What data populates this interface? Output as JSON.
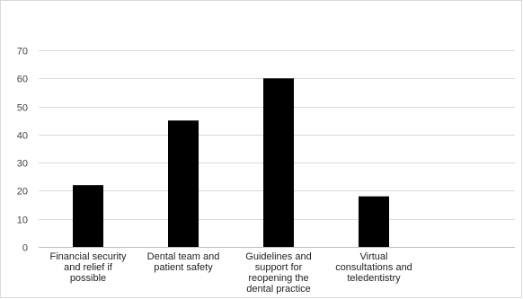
{
  "chart_data": {
    "type": "bar",
    "title": "",
    "xlabel": "",
    "ylabel": "",
    "categories": [
      [
        "Financial security",
        "and relief if",
        "possible"
      ],
      [
        "Dental team and",
        "patient safety"
      ],
      [
        "Guidelines and",
        "support for",
        "reopening the",
        "dental practice"
      ],
      [
        "Virtual",
        "consultations and",
        "teledentistry"
      ]
    ],
    "values": [
      22,
      45,
      60,
      18
    ],
    "ylim": [
      0,
      70
    ],
    "yticks": [
      0,
      10,
      20,
      30,
      40,
      50,
      60,
      70
    ],
    "grid": true,
    "legend": "none",
    "colors": {
      "bar": "#000000",
      "grid": "#d9d9d9",
      "axis": "#bfbfbf",
      "frame": "#d9d9d9"
    }
  }
}
